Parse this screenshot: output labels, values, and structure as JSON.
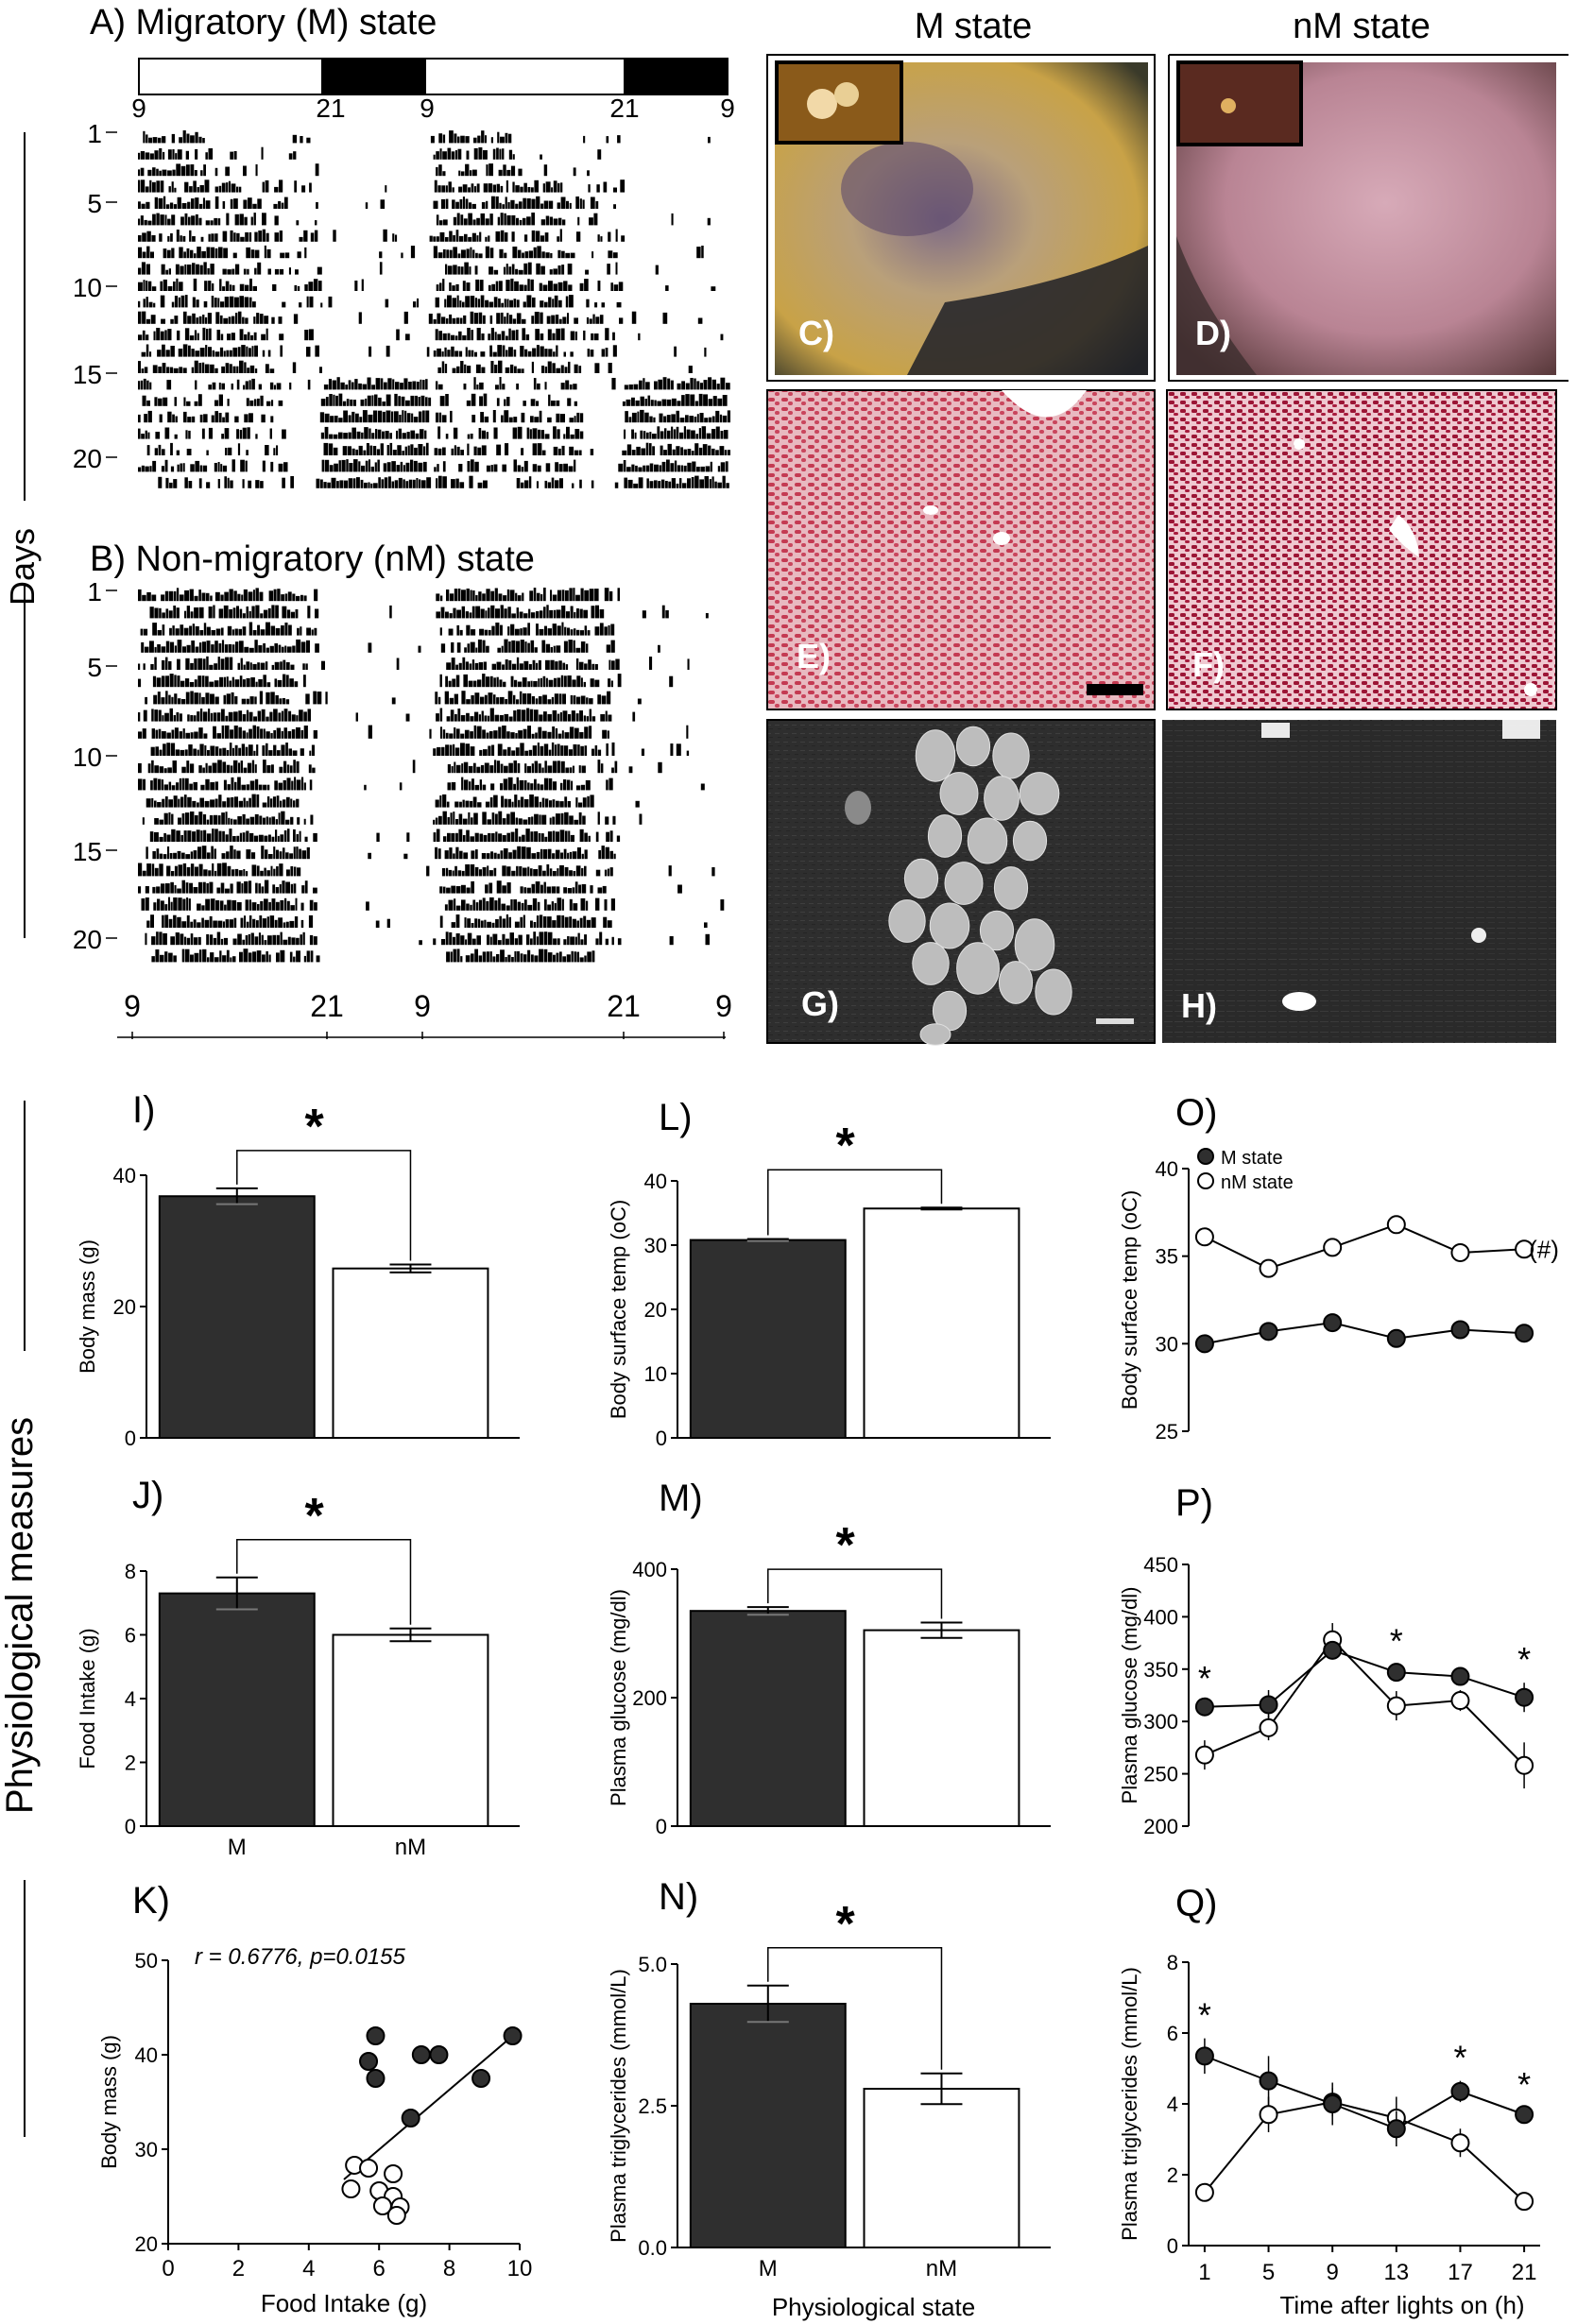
{
  "figure": {
    "colors": {
      "m_state": "#2f2f2f",
      "nm_state": "#ffffff",
      "stroke": "#000000"
    },
    "actograms": {
      "a_title": "A) Migratory (M) state",
      "b_title": "B) Non-migratory (nM) state",
      "top_ticks": [
        "9",
        "21",
        "9",
        "21",
        "9"
      ],
      "bottom_ticks": [
        "9",
        "21",
        "9",
        "21",
        "9"
      ],
      "day_ticks": [
        "1",
        "5",
        "10",
        "15",
        "20"
      ],
      "days_label": "Days"
    },
    "photos": {
      "col_m": "M state",
      "col_nm": "nM state",
      "labels": [
        "C)",
        "D)",
        "E)",
        "F)",
        "G)",
        "H)"
      ]
    },
    "section_label": "Physiological measures"
  },
  "chart_data": [
    {
      "id": "I",
      "panel_label": "I)",
      "type": "bar",
      "categories": [
        "M",
        "nM"
      ],
      "values": [
        36.8,
        25.8
      ],
      "errors": [
        1.2,
        0.6
      ],
      "ylabel": "Body mass (g)",
      "ylim": [
        0,
        40
      ],
      "yticks": [
        "0",
        "20",
        "40"
      ],
      "show_xticklabels": false,
      "significance": "*"
    },
    {
      "id": "J",
      "panel_label": "J)",
      "type": "bar",
      "categories": [
        "M",
        "nM"
      ],
      "values": [
        7.3,
        6.0
      ],
      "errors": [
        0.5,
        0.2
      ],
      "ylabel": "Food Intake (g)",
      "ylim": [
        0,
        8
      ],
      "yticks": [
        "0",
        "2",
        "4",
        "6",
        "8"
      ],
      "show_xticklabels": true,
      "significance": "*"
    },
    {
      "id": "K",
      "panel_label": "K)",
      "type": "scatter",
      "annotation": "r = 0.6776, p=0.0155",
      "xlabel": "Food Intake (g)",
      "ylabel": "Body mass (g)",
      "xlim": [
        0,
        10
      ],
      "ylim": [
        20,
        50
      ],
      "xticks": [
        "0",
        "2",
        "4",
        "6",
        "8",
        "10"
      ],
      "yticks": [
        "20",
        "30",
        "40",
        "50"
      ],
      "series": [
        {
          "name": "M",
          "points": [
            [
              5.9,
              42
            ],
            [
              5.7,
              39.3
            ],
            [
              5.9,
              37.5
            ],
            [
              7.2,
              40
            ],
            [
              7.7,
              40
            ],
            [
              8.9,
              37.5
            ],
            [
              9.8,
              42
            ],
            [
              6.9,
              33.3
            ]
          ]
        },
        {
          "name": "nM",
          "points": [
            [
              5.3,
              28.3
            ],
            [
              5.7,
              28
            ],
            [
              6.4,
              27.4
            ],
            [
              5.2,
              25.8
            ],
            [
              6.0,
              25.6
            ],
            [
              6.4,
              25
            ],
            [
              6.1,
              24
            ],
            [
              6.6,
              23.9
            ],
            [
              6.5,
              23
            ]
          ]
        }
      ],
      "fit_line": [
        [
          5.0,
          26.8
        ],
        [
          9.8,
          42
        ]
      ]
    },
    {
      "id": "L",
      "panel_label": "L)",
      "type": "bar",
      "categories": [
        "M",
        "nM"
      ],
      "values": [
        30.8,
        35.7
      ],
      "errors": [
        0.15,
        0.15
      ],
      "ylabel": "Body surface temp (oC)",
      "ylim": [
        0,
        40
      ],
      "yticks": [
        "0",
        "10",
        "20",
        "30",
        "40"
      ],
      "show_xticklabels": false,
      "significance": "*"
    },
    {
      "id": "M",
      "panel_label": "M)",
      "type": "bar",
      "categories": [
        "M",
        "nM"
      ],
      "values": [
        335,
        305
      ],
      "errors": [
        6,
        12
      ],
      "ylabel": "Plasma glucose (mg/dl)",
      "ylim": [
        0,
        400
      ],
      "yticks": [
        "0",
        "200",
        "400"
      ],
      "show_xticklabels": false,
      "significance": "*"
    },
    {
      "id": "N",
      "panel_label": "N)",
      "type": "bar",
      "categories": [
        "M",
        "nM"
      ],
      "values": [
        4.3,
        2.8
      ],
      "errors": [
        0.32,
        0.27
      ],
      "ylabel": "Plasma triglycerides (mmol/L)",
      "xlabel": "Physiological state",
      "ylim": [
        0,
        5
      ],
      "yticks": [
        "0.0",
        "2.5",
        "5.0"
      ],
      "show_xticklabels": true,
      "significance": "*"
    },
    {
      "id": "O",
      "panel_label": "O)",
      "type": "line",
      "x": [
        1,
        5,
        9,
        13,
        17,
        21
      ],
      "series": [
        {
          "name": "M state",
          "values": [
            30.0,
            30.7,
            31.2,
            30.3,
            30.8,
            30.6
          ]
        },
        {
          "name": "nM state",
          "values": [
            36.1,
            34.3,
            35.5,
            36.8,
            35.2,
            35.4
          ]
        }
      ],
      "ylabel": "Body surface temp (oC)",
      "ylim": [
        25,
        40
      ],
      "yticks": [
        "25",
        "30",
        "35",
        "40"
      ],
      "annotation": "(#)"
    },
    {
      "id": "P",
      "panel_label": "P)",
      "type": "line",
      "x": [
        1,
        5,
        9,
        13,
        17,
        21
      ],
      "series": [
        {
          "name": "M state",
          "values": [
            314,
            316,
            368,
            347,
            343,
            323
          ],
          "errors": [
            5,
            14,
            8,
            8,
            6,
            14
          ]
        },
        {
          "name": "nM state",
          "values": [
            268,
            294,
            378,
            315,
            320,
            258
          ],
          "errors": [
            14,
            12,
            16,
            14,
            10,
            22
          ]
        }
      ],
      "ylabel": "Plasma glucose (mg/dl)",
      "ylim": [
        200,
        450
      ],
      "yticks": [
        "200",
        "250",
        "300",
        "350",
        "400",
        "450"
      ],
      "stars_at": [
        1,
        13,
        21
      ]
    },
    {
      "id": "Q",
      "panel_label": "Q)",
      "type": "line",
      "x": [
        1,
        5,
        9,
        13,
        17,
        21
      ],
      "xticks": [
        "1",
        "5",
        "9",
        "13",
        "17",
        "21"
      ],
      "series": [
        {
          "name": "M state",
          "values": [
            5.35,
            4.65,
            4.0,
            3.3,
            4.35,
            3.7
          ],
          "errors": [
            0.5,
            0.7,
            0.6,
            0.5,
            0.3,
            0.2
          ]
        },
        {
          "name": "nM state",
          "values": [
            1.5,
            3.7,
            4.05,
            3.6,
            2.9,
            1.25
          ],
          "errors": [
            0.1,
            0.5,
            0.4,
            0.6,
            0.4,
            0.1
          ]
        }
      ],
      "ylabel": "Plasma triglycerides (mmol/L)",
      "xlabel": "Time after lights on (h)",
      "ylim": [
        0,
        8
      ],
      "yticks": [
        "0",
        "2",
        "4",
        "6",
        "8"
      ],
      "stars_at": [
        1,
        17,
        21
      ]
    }
  ]
}
